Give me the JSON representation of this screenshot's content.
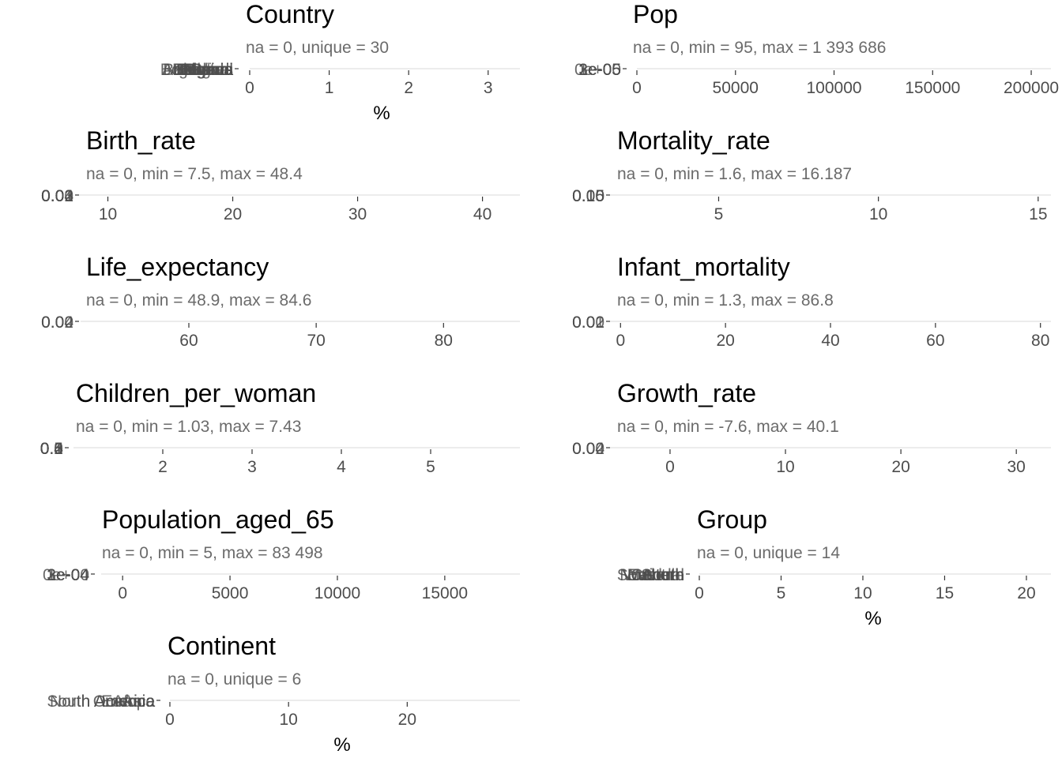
{
  "chart_data": [
    {
      "type": "bar",
      "title": "Country",
      "subtitle": "na = 0, unique = 30",
      "xlabel": "%",
      "xlim": [
        0,
        3.4
      ],
      "xticks": [
        0,
        1,
        2,
        3
      ],
      "y_overlap_labels": [
        "Bosnia",
        "Argentina",
        "Angola",
        "Brazil",
        "Bhutan",
        "Benin",
        "Burundi",
        "Belarus",
        "Botswana",
        "Bolivia",
        "Burkina",
        "Bulgaria",
        "Brunei",
        "Belgium",
        "Bahamas"
      ]
    },
    {
      "type": "bar",
      "title": "Pop",
      "subtitle": "na = 0, min = 95, max = 1 393 686",
      "xlabel": "",
      "xlim": [
        0,
        210000
      ],
      "xticks": [
        0,
        50000,
        100000,
        150000,
        200000
      ],
      "y_overlap_labels": [
        "0e+00",
        "1e-05",
        "2e-05",
        "3e-05"
      ]
    },
    {
      "type": "area",
      "title": "Birth_rate",
      "subtitle": "na = 0, min = 7.5, max = 48.4",
      "xlabel": "",
      "xlim": [
        7.5,
        43
      ],
      "xticks": [
        10,
        20,
        30,
        40
      ],
      "y_overlap_labels": [
        "0.00",
        "0.01",
        "0.02",
        "0.03",
        "0.04"
      ]
    },
    {
      "type": "area",
      "title": "Mortality_rate",
      "subtitle": "na = 0, min = 1.6, max = 16.187",
      "xlabel": "",
      "xlim": [
        1.6,
        15.4
      ],
      "xticks": [
        5,
        10,
        15
      ],
      "y_overlap_labels": [
        "0.00",
        "0.05",
        "0.10",
        "0.15"
      ]
    },
    {
      "type": "area",
      "title": "Life_expectancy",
      "subtitle": "na = 0, min = 48.9, max = 84.6",
      "xlabel": "",
      "xlim": [
        51.5,
        86
      ],
      "xticks": [
        60,
        70,
        80
      ],
      "y_overlap_labels": [
        "0.00",
        "0.02",
        "0.04"
      ]
    },
    {
      "type": "area",
      "title": "Infant_mortality",
      "subtitle": "na = 0, min = 1.3, max = 86.8",
      "xlabel": "",
      "xlim": [
        -2,
        82
      ],
      "xticks": [
        0,
        20,
        40,
        60,
        80
      ],
      "y_overlap_labels": [
        "0.00",
        "0.01",
        "0.02"
      ]
    },
    {
      "type": "area",
      "title": "Children_per_woman",
      "subtitle": "na = 0, min = 1.03, max = 7.43",
      "xlabel": "",
      "xlim": [
        1,
        6
      ],
      "xticks": [
        2,
        3,
        4,
        5
      ],
      "y_overlap_labels": [
        "0.0",
        "0.1",
        "0.2",
        "0.3",
        "0.4",
        "0.5"
      ]
    },
    {
      "type": "area",
      "title": "Growth_rate",
      "subtitle": "na = 0, min = -7.6, max = 40.1",
      "xlabel": "",
      "xlim": [
        -5.2,
        33
      ],
      "xticks": [
        0,
        10,
        20,
        30
      ],
      "y_overlap_labels": [
        "0.00",
        "0.02",
        "0.04"
      ]
    },
    {
      "type": "area",
      "title": "Population_aged_65",
      "subtitle": "na = 0, min = 5, max = 83 498",
      "xlabel": "",
      "xlim": [
        -1000,
        18500
      ],
      "xticks": [
        0,
        5000,
        10000,
        15000
      ],
      "y_overlap_labels": [
        "0e+00",
        "1e-04",
        "2e-04",
        "3e-04"
      ]
    },
    {
      "type": "bar",
      "title": "Group",
      "subtitle": "na = 0, unique = 14",
      "xlabel": "%",
      "xlim": [
        0,
        21.5
      ],
      "xticks": [
        0,
        5,
        10,
        15,
        20
      ],
      "y_overlap_labels": [
        "North",
        "South",
        "Eastern",
        "Western",
        "Southern",
        "Central",
        "Middle",
        "Northern"
      ]
    },
    {
      "type": "bar",
      "title": "Continent",
      "subtitle": "na = 0, unique = 6",
      "xlabel": "%",
      "xlim": [
        0,
        29.5
      ],
      "xticks": [
        0,
        10,
        20
      ],
      "y_overlap_labels": [
        "North America",
        "South America",
        "Oceania",
        "Europe",
        "Africa",
        "Asia"
      ]
    }
  ]
}
